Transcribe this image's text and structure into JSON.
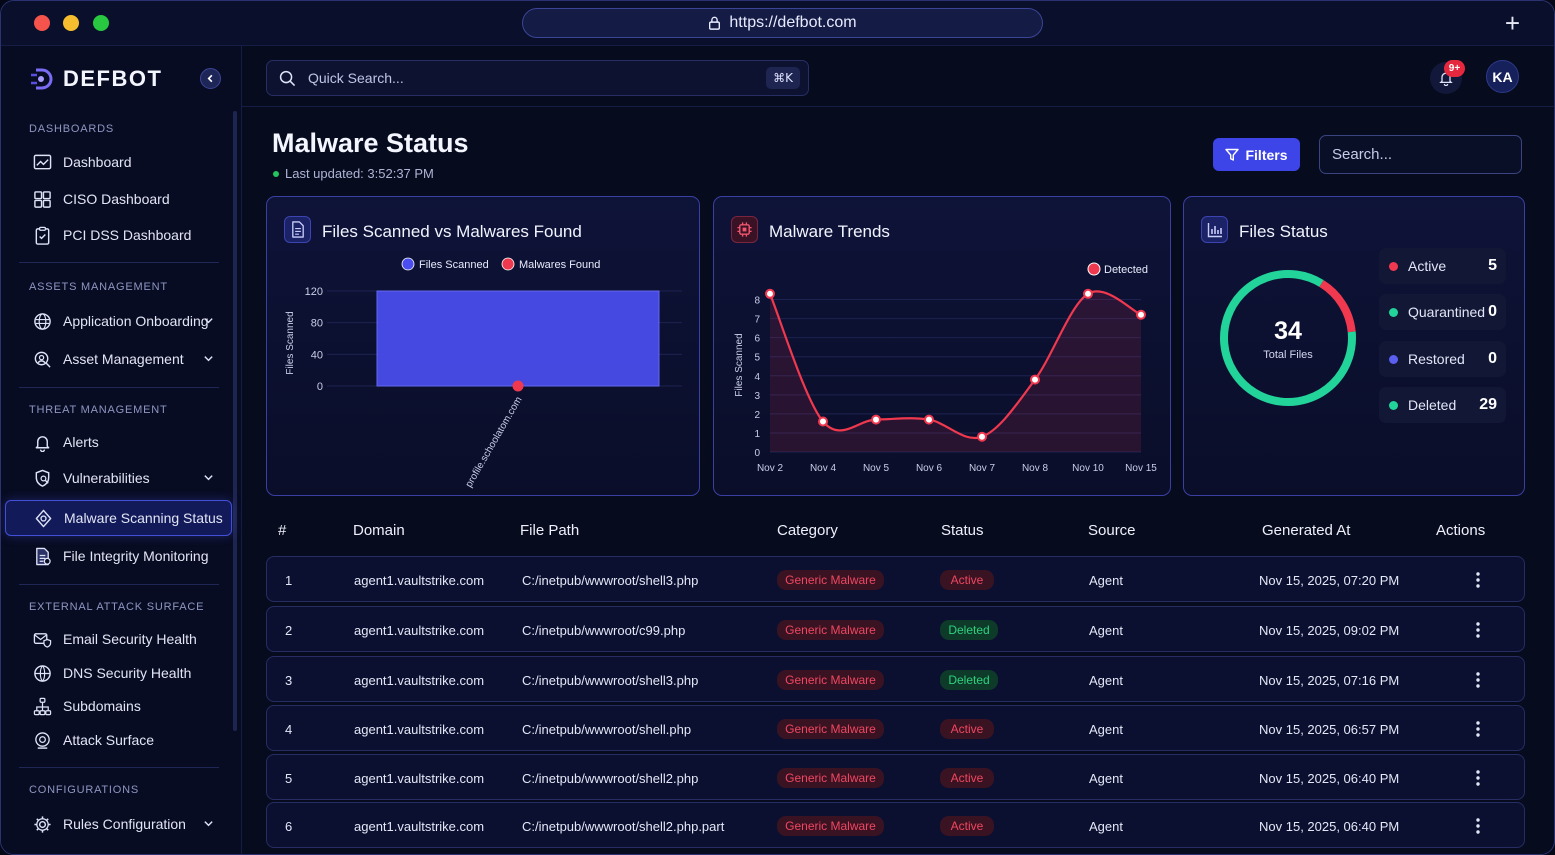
{
  "browser": {
    "url": "https://defbot.com"
  },
  "brand": {
    "name": "DEFBOT"
  },
  "sidebar": {
    "sections": {
      "dashboards": "DASHBOARDS",
      "assets": "ASSETS MANAGEMENT",
      "threat": "THREAT MANAGEMENT",
      "external": "EXTERNAL ATTACK SURFACE",
      "config": "CONFIGURATIONS"
    },
    "items": {
      "dashboard": "Dashboard",
      "ciso": "CISO Dashboard",
      "pci": "PCI DSS Dashboard",
      "app_onboarding": "Application Onboarding",
      "asset_mgmt": "Asset Management",
      "alerts": "Alerts",
      "vulns": "Vulnerabilities",
      "malware": "Malware Scanning Status",
      "fim": "File Integrity Monitoring",
      "email": "Email Security Health",
      "dns": "DNS Security Health",
      "subdomains": "Subdomains",
      "attack_surface": "Attack Surface",
      "rules": "Rules Configuration"
    }
  },
  "topbar": {
    "search_placeholder": "Quick Search...",
    "shortcut": "⌘K",
    "notif_badge": "9+",
    "avatar": "KA"
  },
  "header": {
    "title": "Malware Status",
    "updated": "Last updated: 3:52:37 PM",
    "filters_label": "Filters",
    "search_placeholder": "Search..."
  },
  "cards": {
    "scanned_title": "Files Scanned vs Malwares Found",
    "trends_title": "Malware Trends",
    "status_title": "Files Status"
  },
  "chart_data": [
    {
      "type": "bar",
      "title": "Files Scanned vs Malwares Found",
      "ylabel": "Files Scanned",
      "categories": [
        "profile.schoolatom.com"
      ],
      "series": [
        {
          "name": "Files Scanned",
          "values": [
            120
          ],
          "color": "#4a4ef0"
        },
        {
          "name": "Malwares Found",
          "values": [
            0
          ],
          "color": "#f0384f"
        }
      ],
      "ylim": [
        0,
        120
      ],
      "yticks": [
        0,
        40,
        80,
        120
      ],
      "legend": "top-center",
      "grid": true
    },
    {
      "type": "line",
      "title": "Malware Trends",
      "ylabel": "Files Scanned",
      "categories": [
        "Nov 2",
        "Nov 4",
        "Nov 5",
        "Nov 6",
        "Nov 7",
        "Nov 8",
        "Nov 10",
        "Nov 15"
      ],
      "series": [
        {
          "name": "Detected",
          "values": [
            8.3,
            1.6,
            1.7,
            1.7,
            0.8,
            3.8,
            8.3,
            7.2
          ],
          "color": "#f0384f"
        }
      ],
      "ylim": [
        0,
        8.5
      ],
      "yticks": [
        0,
        1,
        2,
        3,
        4,
        5,
        6,
        7,
        8
      ],
      "legend": "top-right",
      "grid": true
    },
    {
      "type": "pie",
      "title": "Files Status",
      "center_value": "34",
      "center_label": "Total Files",
      "categories": [
        "Active",
        "Quarantined",
        "Restored",
        "Deleted"
      ],
      "values": [
        5,
        0,
        0,
        29
      ],
      "colors": [
        "#f0384f",
        "#22d39a",
        "#5b5ff0",
        "#22d39a"
      ]
    }
  ],
  "table": {
    "headers": [
      "#",
      "Domain",
      "File Path",
      "Category",
      "Status",
      "Source",
      "Generated At",
      "Actions"
    ],
    "rows": [
      {
        "n": "1",
        "domain": "agent1.vaultstrike.com",
        "path": "C:/inetpub/wwwroot/shell3.php",
        "category": "Generic Malware",
        "status": "Active",
        "source": "Agent",
        "generated": "Nov 15, 2025, 07:20 PM"
      },
      {
        "n": "2",
        "domain": "agent1.vaultstrike.com",
        "path": "C:/inetpub/wwwroot/c99.php",
        "category": "Generic Malware",
        "status": "Deleted",
        "source": "Agent",
        "generated": "Nov 15, 2025, 09:02 PM"
      },
      {
        "n": "3",
        "domain": "agent1.vaultstrike.com",
        "path": "C:/inetpub/wwwroot/shell3.php",
        "category": "Generic Malware",
        "status": "Deleted",
        "source": "Agent",
        "generated": "Nov 15, 2025, 07:16 PM"
      },
      {
        "n": "4",
        "domain": "agent1.vaultstrike.com",
        "path": "C:/inetpub/wwwroot/shell.php",
        "category": "Generic Malware",
        "status": "Active",
        "source": "Agent",
        "generated": "Nov 15, 2025, 06:57 PM"
      },
      {
        "n": "5",
        "domain": "agent1.vaultstrike.com",
        "path": "C:/inetpub/wwwroot/shell2.php",
        "category": "Generic Malware",
        "status": "Active",
        "source": "Agent",
        "generated": "Nov 15, 2025, 06:40 PM"
      },
      {
        "n": "6",
        "domain": "agent1.vaultstrike.com",
        "path": "C:/inetpub/wwwroot/shell2.php.part",
        "category": "Generic Malware",
        "status": "Active",
        "source": "Agent",
        "generated": "Nov 15, 2025, 06:40 PM"
      }
    ]
  }
}
